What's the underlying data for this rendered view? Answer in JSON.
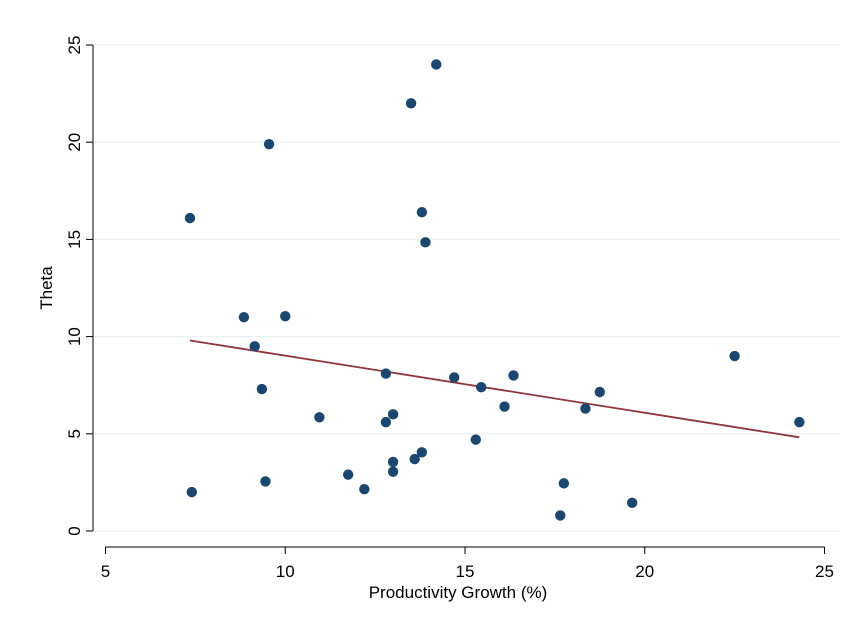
{
  "chart_data": {
    "type": "scatter",
    "title": "",
    "xlabel": "Productivity Growth (%)",
    "ylabel": "Theta",
    "xlim": [
      5,
      25
    ],
    "ylim": [
      0,
      25
    ],
    "x_ticks": [
      "5",
      "10",
      "15",
      "20",
      "25"
    ],
    "y_ticks": [
      "0",
      "5",
      "10",
      "15",
      "20",
      "25"
    ],
    "grid": "horizontal",
    "colors": {
      "points": "#1a476f",
      "fit_line": "#90353b",
      "grid": "#eaf2f3",
      "axis": "#000000"
    },
    "series": [
      {
        "kind": "points",
        "points": [
          {
            "x": 7.35,
            "y": 16.1
          },
          {
            "x": 7.4,
            "y": 2.0
          },
          {
            "x": 8.85,
            "y": 11.0
          },
          {
            "x": 9.15,
            "y": 9.5
          },
          {
            "x": 9.35,
            "y": 7.3
          },
          {
            "x": 9.45,
            "y": 2.55
          },
          {
            "x": 9.55,
            "y": 19.9
          },
          {
            "x": 10.0,
            "y": 11.05
          },
          {
            "x": 10.95,
            "y": 5.85
          },
          {
            "x": 11.75,
            "y": 2.9
          },
          {
            "x": 12.2,
            "y": 2.15
          },
          {
            "x": 12.8,
            "y": 5.6
          },
          {
            "x": 12.8,
            "y": 8.1
          },
          {
            "x": 13.0,
            "y": 6.0
          },
          {
            "x": 13.0,
            "y": 3.55
          },
          {
            "x": 13.0,
            "y": 3.05
          },
          {
            "x": 13.5,
            "y": 22.0
          },
          {
            "x": 13.6,
            "y": 3.7
          },
          {
            "x": 13.8,
            "y": 4.05
          },
          {
            "x": 13.8,
            "y": 16.4
          },
          {
            "x": 13.9,
            "y": 14.85
          },
          {
            "x": 14.2,
            "y": 24.0
          },
          {
            "x": 14.7,
            "y": 7.9
          },
          {
            "x": 15.3,
            "y": 4.7
          },
          {
            "x": 15.45,
            "y": 7.4
          },
          {
            "x": 16.1,
            "y": 6.4
          },
          {
            "x": 16.35,
            "y": 8.0
          },
          {
            "x": 17.65,
            "y": 0.8
          },
          {
            "x": 17.75,
            "y": 2.45
          },
          {
            "x": 18.35,
            "y": 6.3
          },
          {
            "x": 18.75,
            "y": 7.15
          },
          {
            "x": 19.65,
            "y": 1.45
          },
          {
            "x": 22.5,
            "y": 9.0
          },
          {
            "x": 24.3,
            "y": 5.6
          }
        ]
      },
      {
        "kind": "fitted-line",
        "points": [
          {
            "x": 7.35,
            "y": 9.8
          },
          {
            "x": 24.3,
            "y": 4.82
          }
        ]
      }
    ]
  }
}
